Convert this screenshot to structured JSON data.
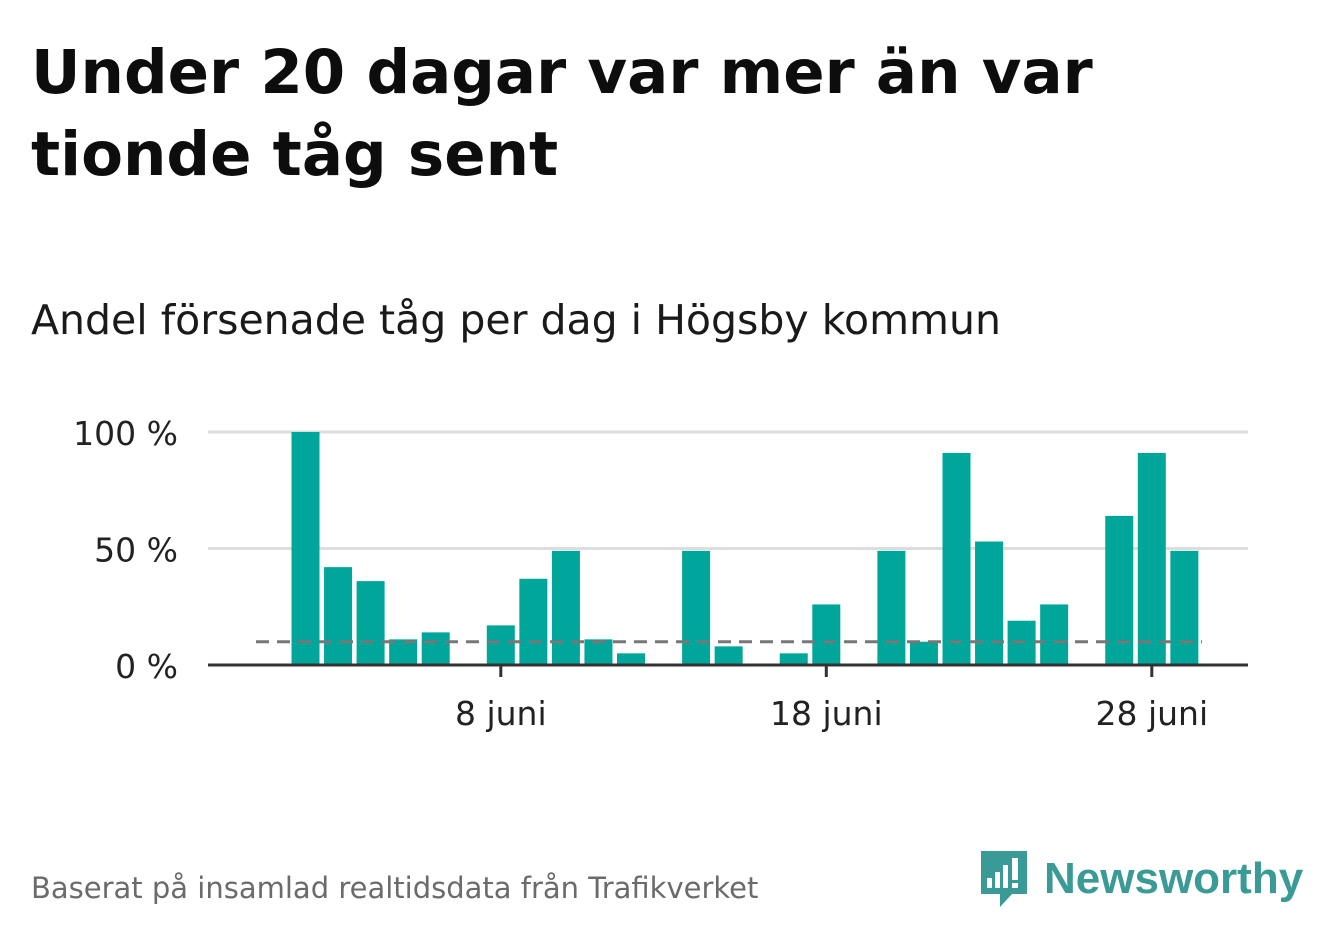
{
  "title": "Under 20 dagar var mer än var tionde tåg sent",
  "subtitle": "Andel försenade tåg per dag i Högsby kommun",
  "footer": "Baserat på insamlad realtidsdata från Trafikverket",
  "brand": {
    "name": "Newsworthy",
    "icon": "newsworthy-logo-icon",
    "color": "#3a9a95"
  },
  "colors": {
    "bar": "#00a699",
    "reference_line": "#777777",
    "grid": "#dddddd",
    "axis": "#333333",
    "tick_text": "#222222"
  },
  "chart_data": {
    "type": "bar",
    "title": "",
    "xlabel": "",
    "ylabel": "",
    "x": [
      "2 juni",
      "3 juni",
      "4 juni",
      "5 juni",
      "6 juni",
      "7 juni",
      "8 juni",
      "9 juni",
      "10 juni",
      "11 juni",
      "12 juni",
      "13 juni",
      "14 juni",
      "15 juni",
      "16 juni",
      "17 juni",
      "18 juni",
      "19 juni",
      "20 juni",
      "21 juni",
      "22 juni",
      "23 juni",
      "24 juni",
      "25 juni",
      "26 juni",
      "27 juni",
      "28 juni",
      "29 juni",
      "30 juni"
    ],
    "values": [
      100,
      42,
      36,
      11,
      14,
      0,
      17,
      37,
      49,
      11,
      5,
      0,
      49,
      8,
      0,
      5,
      26,
      0,
      49,
      10,
      91,
      53,
      19,
      26,
      0,
      64,
      91,
      49,
      0
    ],
    "reference_line": 10,
    "ylim": [
      0,
      100
    ],
    "yticks": [
      0,
      50,
      100
    ],
    "ytick_labels": [
      "0 %",
      "50 %",
      "100 %"
    ],
    "xticks": [
      "8 juni",
      "18 juni",
      "28 juni"
    ],
    "xtick_labels": [
      "8 juni",
      "18 juni",
      "28 juni"
    ],
    "grid": true,
    "legend": "none"
  }
}
